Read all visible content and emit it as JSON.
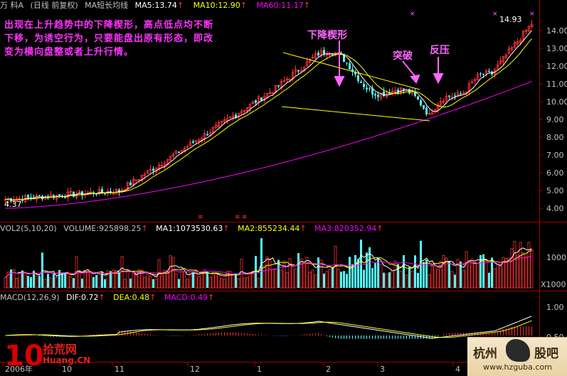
{
  "header": {
    "stock_code": "万  科A",
    "period": "(日线 前复权)",
    "ma_title": "MA短长均线",
    "ma5": "MA5:13.74",
    "ma10": "MA10:12.90",
    "ma60": "MA60:11.17"
  },
  "vol_header": {
    "title": "VOL2(5,10,20)",
    "volume": "VOLUME:925898.25",
    "ma1": "MA1:1073530.63",
    "ma2": "MA2:855234.44",
    "ma3": "MA3:820352.94"
  },
  "macd_header": {
    "title": "MACD(12,26,9)",
    "dif": "DIF:0.72",
    "dea": "DEA:0.48",
    "macd": "MACD:0.49"
  },
  "annotation": {
    "text": "出现在上升趋势中的下降楔形，高点低点均不断下移，为诱空行为，只要能盘出原有形态，即改变为横向盘整或者上升行情。",
    "wedge_label": "下降楔形",
    "breakout_label": "突破",
    "pullback_label": "反压"
  },
  "price_axis": [
    "14.00",
    "13.00",
    "12.00",
    "11.00",
    "10.00",
    "9.00",
    "8.00",
    "7.00",
    "6.00",
    "5.00",
    "4.00"
  ],
  "price_high_label": "14.93",
  "price_low_label": "4.37",
  "vol_axis": [
    "1000",
    "X1000"
  ],
  "macd_axis": [
    "1.00",
    "0.50"
  ],
  "x_axis": [
    "2006年",
    "10",
    "11",
    "12",
    "1",
    "2",
    "3",
    "4"
  ],
  "logos": {
    "left_big": "10",
    "left_text_top": "拾荒网",
    "left_text_bottom": "Huang.CN",
    "right_title_left": "杭州",
    "right_title_right": "股吧",
    "right_url": "www.hzguba.com"
  },
  "colors": {
    "up": "#ff3232",
    "down": "#54ffff",
    "ma5": "#ffffff",
    "ma10": "#ffff00",
    "ma60": "#ff00ff",
    "annotation": "#ff33ff"
  }
}
